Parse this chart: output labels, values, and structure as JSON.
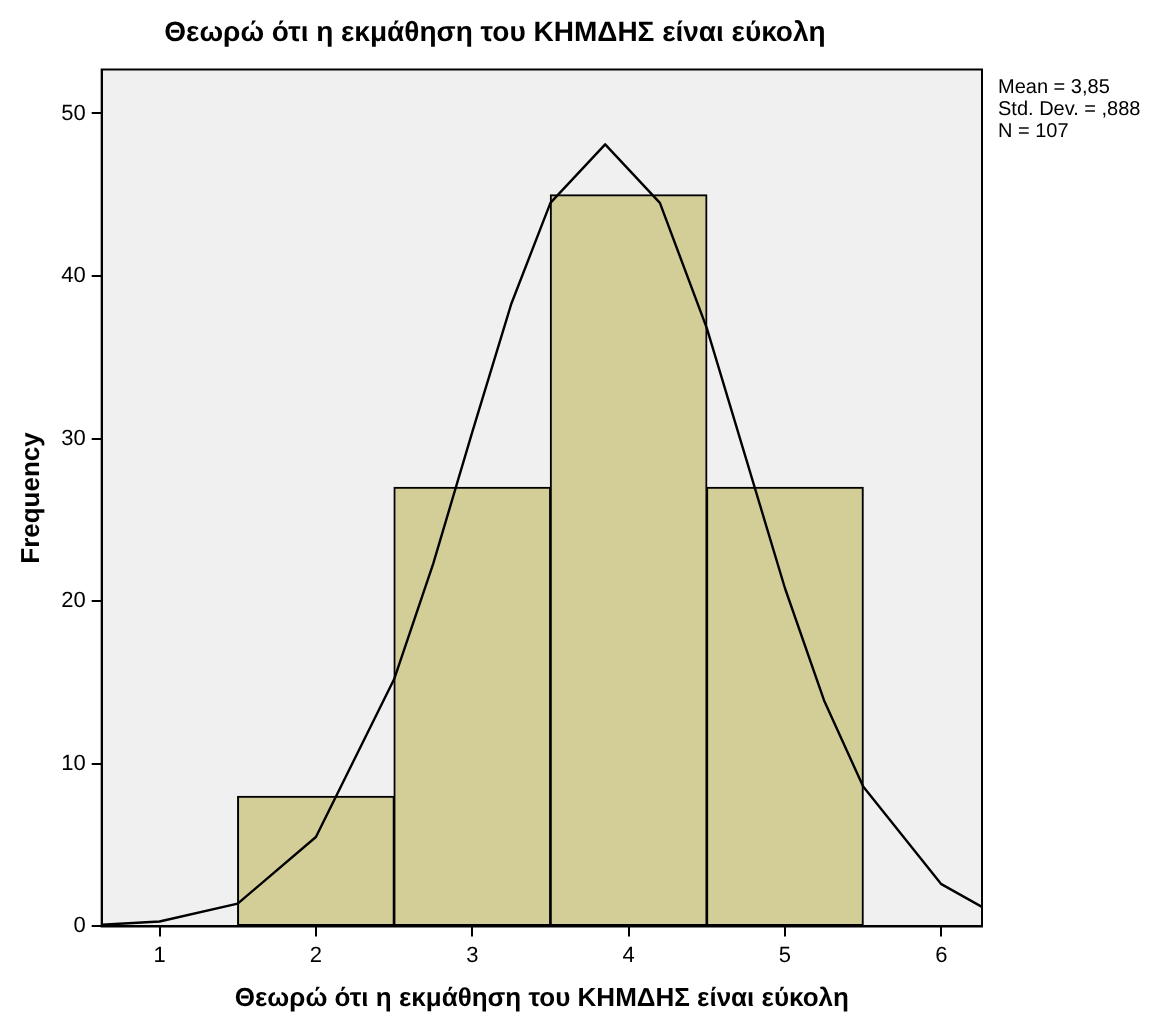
{
  "chart_data": {
    "type": "histogram",
    "title": "Θεωρώ ότι η εκμάθηση του ΚΗΜΔΗΣ είναι εύκολη",
    "xlabel": "Θεωρώ ότι η εκμάθηση του ΚΗΜΔΗΣ είναι εύκολη",
    "ylabel": "Frequency",
    "bins": [
      1.5,
      2.5,
      3.5,
      4.5,
      5.5
    ],
    "values": [
      8,
      27,
      45,
      27
    ],
    "color": "#d3ce97",
    "series": [
      {
        "type": "line",
        "color": "#000000",
        "x": [
          0.63,
          1,
          1.5,
          2,
          2.5,
          2.75,
          3,
          3.25,
          3.5,
          3.85,
          4.2,
          4.5,
          4.75,
          5,
          5.25,
          5.5,
          6,
          6.26
        ],
        "values": [
          0.1,
          0.3,
          1.4,
          5.5,
          15.2,
          22.3,
          30.4,
          38.3,
          44.5,
          48.1,
          44.5,
          36.8,
          28.8,
          20.8,
          13.9,
          8.6,
          2.6,
          1.2
        ]
      }
    ],
    "xlim": [
      0.63,
      6.26
    ],
    "xticks": [
      1,
      2,
      3,
      4,
      5,
      6
    ],
    "ylim": [
      0,
      52.7
    ],
    "yticks": [
      0,
      10,
      20,
      30,
      40,
      50
    ],
    "grid": false,
    "legend": false,
    "marker": "none",
    "line_style": "solid",
    "annotations": [
      "Mean = 3,85",
      "Std. Dev. = ,888",
      "N = 107"
    ]
  }
}
